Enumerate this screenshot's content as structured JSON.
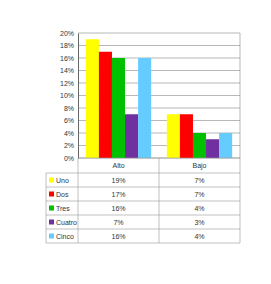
{
  "chart_data": {
    "type": "bar",
    "categories": [
      "Alto",
      "Bajo"
    ],
    "series": [
      {
        "name": "Uno",
        "color": "#ffff00",
        "values": [
          19,
          7
        ],
        "value_labels": [
          "19%",
          "7%"
        ]
      },
      {
        "name": "Dos",
        "color": "#ff0000",
        "values": [
          17,
          7
        ],
        "value_labels": [
          "17%",
          "7%"
        ]
      },
      {
        "name": "Tres",
        "color": "#00c000",
        "values": [
          16,
          4
        ],
        "value_labels": [
          "16%",
          "4%"
        ]
      },
      {
        "name": "Cuatro",
        "color": "#7030a0",
        "values": [
          7,
          3
        ],
        "value_labels": [
          "7%",
          "3%"
        ]
      },
      {
        "name": "Cinco",
        "color": "#66ccff",
        "values": [
          16,
          4
        ],
        "value_labels": [
          "16%",
          "4%"
        ]
      }
    ],
    "ylim": [
      0,
      20
    ],
    "yticks": [
      {
        "value": 0,
        "label": "0%"
      },
      {
        "value": 2,
        "label": "2%"
      },
      {
        "value": 4,
        "label": "4%"
      },
      {
        "value": 6,
        "label": "6%"
      },
      {
        "value": 8,
        "label": "8%"
      },
      {
        "value": 10,
        "label": "10%"
      },
      {
        "value": 12,
        "label": "12%"
      },
      {
        "value": 14,
        "label": "14%"
      },
      {
        "value": 16,
        "label": "16%"
      },
      {
        "value": 18,
        "label": "18%"
      },
      {
        "value": 20,
        "label": "20%"
      }
    ],
    "grid": true
  }
}
